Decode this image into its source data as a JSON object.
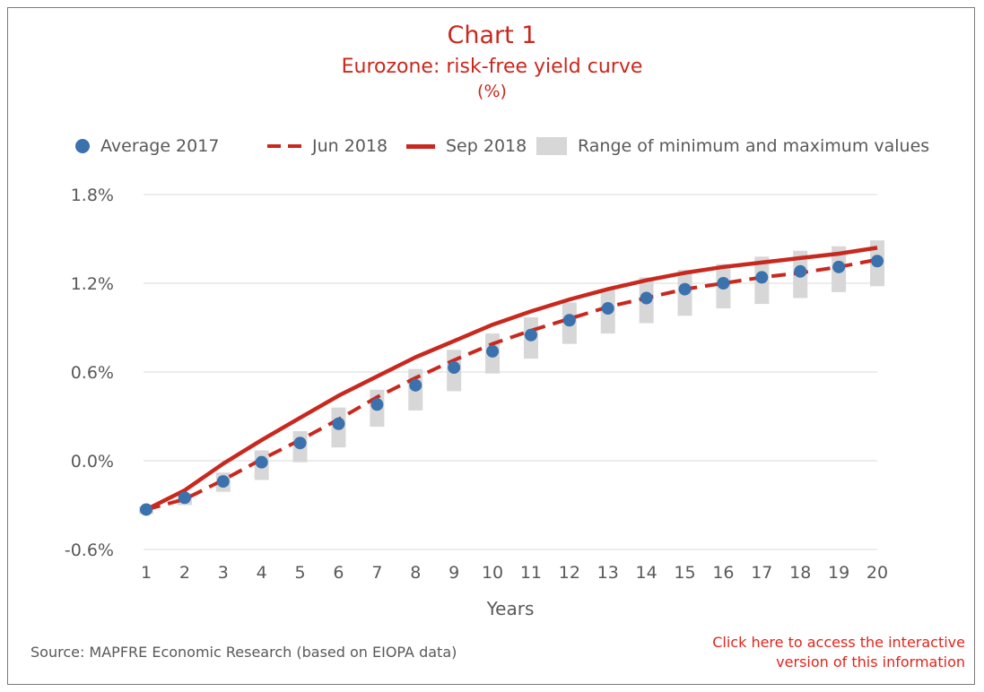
{
  "header": {
    "chart_number": "Chart 1",
    "title": "Eurozone: risk-free yield curve",
    "unit": "(%)"
  },
  "footer": {
    "source": "Source: MAPFRE Economic Research (based on EIOPA data)",
    "link_line1": "Click here to access the interactive",
    "link_line2": "version of this information"
  },
  "colors": {
    "accent_red": "#c8281e",
    "dot_blue": "#3b71ad",
    "range_gray": "#d7d7d7",
    "grid": "#d9d9d9"
  },
  "chart_data": {
    "type": "line",
    "xlabel": "Years",
    "ylabel": "",
    "x": [
      1,
      2,
      3,
      4,
      5,
      6,
      7,
      8,
      9,
      10,
      11,
      12,
      13,
      14,
      15,
      16,
      17,
      18,
      19,
      20
    ],
    "ylim": [
      -0.6,
      1.8
    ],
    "yticks": [
      -0.6,
      0.0,
      0.6,
      1.2,
      1.8
    ],
    "ytick_labels": [
      "-0.6%",
      "0.0%",
      "0.6%",
      "1.2%",
      "1.8%"
    ],
    "grid": "horizontal",
    "legend_position": "top",
    "series": [
      {
        "name": "Average 2017",
        "style": "dots",
        "values": [
          -0.33,
          -0.25,
          -0.14,
          -0.01,
          0.12,
          0.25,
          0.38,
          0.51,
          0.63,
          0.74,
          0.85,
          0.95,
          1.03,
          1.1,
          1.16,
          1.2,
          1.24,
          1.28,
          1.31,
          1.35
        ]
      },
      {
        "name": "Jun 2018",
        "style": "dashed",
        "values": [
          -0.33,
          -0.26,
          -0.13,
          0.01,
          0.14,
          0.28,
          0.43,
          0.56,
          0.68,
          0.79,
          0.88,
          0.96,
          1.04,
          1.1,
          1.16,
          1.2,
          1.24,
          1.27,
          1.31,
          1.36
        ]
      },
      {
        "name": "Sep 2018",
        "style": "solid",
        "values": [
          -0.33,
          -0.2,
          -0.02,
          0.14,
          0.29,
          0.44,
          0.57,
          0.7,
          0.81,
          0.92,
          1.01,
          1.09,
          1.16,
          1.22,
          1.27,
          1.31,
          1.34,
          1.37,
          1.4,
          1.44
        ]
      },
      {
        "name": "Range of minimum and maximum values",
        "style": "range",
        "min": [
          -0.36,
          -0.3,
          -0.21,
          -0.13,
          -0.01,
          0.09,
          0.23,
          0.34,
          0.47,
          0.59,
          0.69,
          0.79,
          0.86,
          0.93,
          0.98,
          1.03,
          1.06,
          1.1,
          1.14,
          1.18
        ],
        "max": [
          -0.31,
          -0.22,
          -0.08,
          0.07,
          0.2,
          0.36,
          0.48,
          0.62,
          0.75,
          0.86,
          0.97,
          1.07,
          1.16,
          1.24,
          1.29,
          1.33,
          1.38,
          1.42,
          1.45,
          1.49
        ]
      }
    ]
  }
}
